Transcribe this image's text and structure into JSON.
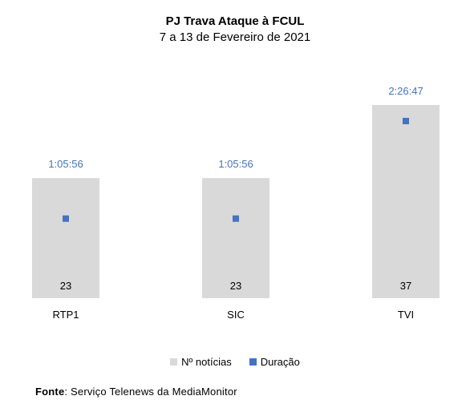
{
  "chart_data": {
    "type": "bar",
    "title": "PJ Trava Ataque à FCUL",
    "subtitle": "7 a 13 de Fevereiro de 2021",
    "categories": [
      "RTP1",
      "SIC",
      "TVI"
    ],
    "series": [
      {
        "name": "Nº notícias",
        "type": "bar",
        "color": "#d9d9d9",
        "values": [
          23,
          23,
          37
        ],
        "labels": [
          "23",
          "23",
          "37"
        ]
      },
      {
        "name": "Duração",
        "type": "scatter",
        "color": "#4472c4",
        "values": [
          "1:05:56",
          "1:05:56",
          "2:26:47"
        ],
        "values_seconds": [
          3956,
          3956,
          8807
        ],
        "labels": [
          "1:05:56",
          "1:05:56",
          "2:26:47"
        ]
      }
    ],
    "ylim_bar": [
      0,
      37
    ],
    "ylim_duration_seconds": [
      0,
      8807
    ],
    "legend_position": "bottom",
    "grid": false
  },
  "source": {
    "label": "Fonte",
    "text": "Serviço Telenews da MediaMonitor"
  }
}
